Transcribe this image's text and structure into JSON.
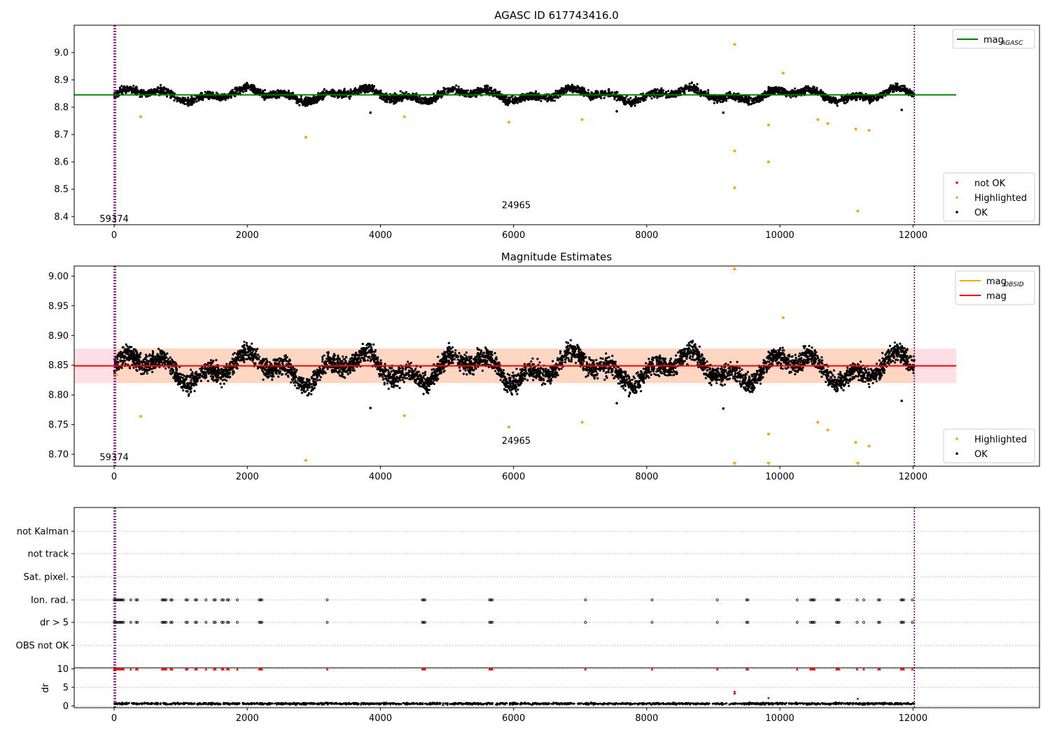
{
  "figure": {
    "title": "AGASC ID 617743416.0"
  },
  "colors": {
    "agasc_line": "#008000",
    "obsid_line": "#ffa500",
    "mag_line": "#ff0000",
    "ok": "#000000",
    "highlighted": "#ffa500",
    "not_ok": "#ff0000",
    "mag_band": "#ffc0cb",
    "obsid_band": "#ffd2b4",
    "vline": "#800080",
    "dense_band": "#2b0e00"
  },
  "chart_data": [
    {
      "id": "top",
      "type": "scatter",
      "title": "",
      "xlim": [
        -600,
        13900
      ],
      "ylim": [
        8.37,
        9.1
      ],
      "xticks": [
        0,
        2000,
        4000,
        6000,
        8000,
        10000,
        12000
      ],
      "yticks": [
        8.4,
        8.5,
        8.6,
        8.7,
        8.8,
        8.9,
        9.0
      ],
      "ytick_labels": [
        "8.4",
        "8.5",
        "8.6",
        "8.7",
        "8.8",
        "8.9",
        "9.0"
      ],
      "reference_lines": [
        {
          "name": "mag_AGASC",
          "y": 8.845,
          "x_range": [
            -600,
            12650
          ]
        }
      ],
      "vertical_lines": [
        0,
        20,
        12020
      ],
      "annotations": [
        {
          "text": "59374",
          "x": 0,
          "y": 8.38
        },
        {
          "text": "24965",
          "x": 6040,
          "y": 8.43
        }
      ],
      "ok_series": {
        "x_range": [
          0,
          12020
        ],
        "center": 8.845,
        "spread": 0.035,
        "outliers": [
          [
            3850,
            8.78
          ],
          [
            7550,
            8.785
          ],
          [
            9150,
            8.78
          ],
          [
            11830,
            8.79
          ]
        ]
      },
      "highlighted_points": [
        [
          400,
          8.765
        ],
        [
          2880,
          8.69
        ],
        [
          4360,
          8.765
        ],
        [
          5930,
          8.745
        ],
        [
          7030,
          8.755
        ],
        [
          9320,
          9.03
        ],
        [
          9320,
          8.64
        ],
        [
          9320,
          8.505
        ],
        [
          9830,
          8.735
        ],
        [
          9830,
          8.6
        ],
        [
          10050,
          8.925
        ],
        [
          10570,
          8.755
        ],
        [
          10720,
          8.74
        ],
        [
          11140,
          8.72
        ],
        [
          11170,
          8.42
        ],
        [
          11340,
          8.715
        ]
      ],
      "legend_upper": {
        "position": "upper-right",
        "entries": [
          {
            "label": "mag",
            "sub": "AGASC",
            "kind": "line",
            "color": "#008000"
          }
        ]
      },
      "legend_lower": {
        "position": "lower-right",
        "entries": [
          {
            "label": "not OK",
            "kind": "dot",
            "color": "#ff0000"
          },
          {
            "label": "Highlighted",
            "kind": "dot",
            "color": "#ffa500"
          },
          {
            "label": "OK",
            "kind": "dot",
            "color": "#000000"
          }
        ]
      }
    },
    {
      "id": "middle",
      "type": "scatter",
      "title": "Magnitude Estimates",
      "xlim": [
        -600,
        13900
      ],
      "ylim": [
        8.68,
        9.017
      ],
      "xticks": [
        0,
        2000,
        4000,
        6000,
        8000,
        10000,
        12000
      ],
      "yticks": [
        8.7,
        8.75,
        8.8,
        8.85,
        8.9,
        8.95,
        9.0
      ],
      "ytick_labels": [
        "8.70",
        "8.75",
        "8.80",
        "8.85",
        "8.90",
        "8.95",
        "9.00"
      ],
      "mag_line": {
        "name": "mag",
        "y": 8.849,
        "band": [
          8.82,
          8.878
        ],
        "x_range": [
          -600,
          12650
        ]
      },
      "vertical_lines": [
        0,
        20,
        12020
      ],
      "annotations": [
        {
          "text": "59374",
          "x": 0,
          "y": 8.69
        },
        {
          "text": "24965",
          "x": 6040,
          "y": 8.718
        }
      ],
      "ok_series": {
        "x_range": [
          0,
          12020
        ],
        "center": 8.845,
        "spread": 0.04,
        "outliers": [
          [
            3850,
            8.778
          ],
          [
            7550,
            8.786
          ],
          [
            9150,
            8.777
          ],
          [
            11830,
            8.79
          ]
        ]
      },
      "highlighted_points": [
        [
          400,
          8.764
        ],
        [
          2880,
          8.69
        ],
        [
          4360,
          8.765
        ],
        [
          5930,
          8.746
        ],
        [
          7030,
          8.754
        ],
        [
          9830,
          8.734
        ],
        [
          10050,
          8.93
        ],
        [
          10570,
          8.754
        ],
        [
          10720,
          8.741
        ],
        [
          11140,
          8.72
        ],
        [
          11340,
          8.714
        ]
      ],
      "offscale_markers": [
        {
          "x": 9320,
          "edge": "top"
        },
        {
          "x": 9320,
          "edge": "bottom"
        },
        {
          "x": 9830,
          "edge": "bottom"
        },
        {
          "x": 11170,
          "edge": "bottom"
        }
      ],
      "legend_upper": {
        "position": "upper-right",
        "entries": [
          {
            "label": "mag",
            "sub": "OBSID",
            "kind": "line",
            "color": "#ffa500"
          },
          {
            "label": "mag",
            "kind": "line",
            "color": "#ff0000"
          }
        ]
      },
      "legend_lower": {
        "position": "lower-right",
        "entries": [
          {
            "label": "Highlighted",
            "kind": "dot",
            "color": "#ffa500"
          },
          {
            "label": "OK",
            "kind": "dot",
            "color": "#000000"
          }
        ]
      }
    },
    {
      "id": "flags",
      "type": "scatter",
      "title": "",
      "xlim": [
        -600,
        13900
      ],
      "categories": [
        "not Kalman",
        "not track",
        "Sat. pixel.",
        "Ion. rad.",
        "dr > 5",
        "OBS not OK"
      ],
      "flagged_x": [
        0,
        20,
        40,
        60,
        80,
        100,
        120,
        140,
        250,
        330,
        350,
        720,
        740,
        760,
        780,
        850,
        870,
        1080,
        1100,
        1220,
        1240,
        1380,
        1500,
        1520,
        1620,
        1640,
        1700,
        1720,
        1850,
        2180,
        2200,
        2220,
        3200,
        4630,
        4650,
        4670,
        5640,
        5660,
        5680,
        7080,
        8080,
        9060,
        9500,
        9520,
        10260,
        10460,
        10480,
        10500,
        10520,
        10850,
        10870,
        10890,
        11160,
        11260,
        11480,
        11500,
        11820,
        11840,
        11860,
        11990
      ],
      "xticks": [
        0,
        2000,
        4000,
        6000,
        8000,
        10000,
        12000
      ]
    },
    {
      "id": "dr",
      "type": "scatter",
      "title": "",
      "xlim": [
        -600,
        13900
      ],
      "ylim": [
        -0.5,
        10.3
      ],
      "yticks": [
        0,
        5,
        10
      ],
      "ytick_labels": [
        "0",
        "5",
        "10"
      ],
      "ylabel": "dr",
      "xticks": [
        0,
        2000,
        4000,
        6000,
        8000,
        10000,
        12000
      ],
      "xtick_labels": [
        "0",
        "2000",
        "4000",
        "6000",
        "8000",
        "10000",
        "12000"
      ],
      "baseline": {
        "x_range": [
          0,
          12020
        ],
        "center": 0.6,
        "spread": 0.4
      },
      "clipped_value": 10,
      "spikes": [
        [
          9320,
          3.8
        ],
        [
          9320,
          3.3
        ],
        [
          9830,
          2.1
        ],
        [
          11170,
          1.9
        ]
      ]
    }
  ]
}
